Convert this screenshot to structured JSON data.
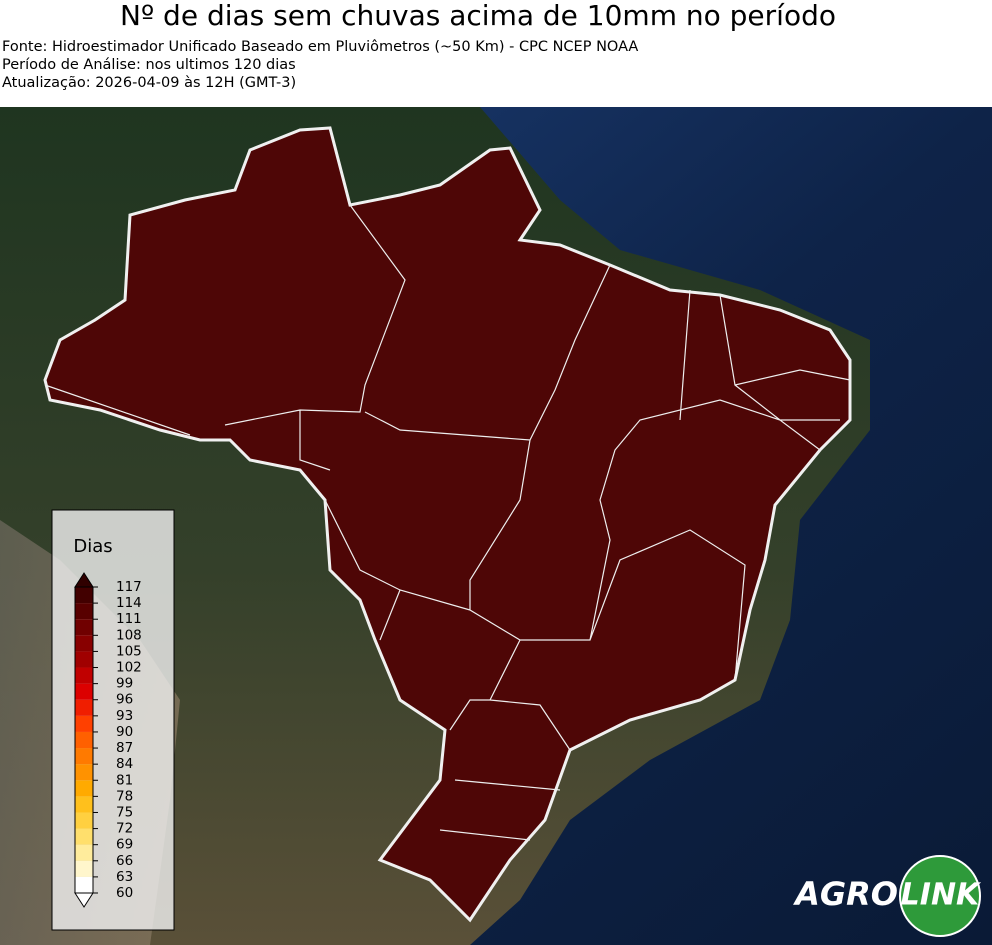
{
  "header": {
    "title": "Nº de dias sem chuvas acima de 10mm no período",
    "lines": [
      "Fonte: Hidroestimador Unificado Baseado em Pluviômetros (~50 Km) - CPC NCEP NOAA",
      "Período de Análise: nos ultimos 120 dias",
      "Atualização: 2026-04-09 às 12H (GMT-3)"
    ]
  },
  "colorbar": {
    "title": "Dias",
    "ticks": [
      60,
      63,
      66,
      69,
      72,
      75,
      78,
      81,
      84,
      87,
      90,
      93,
      96,
      99,
      102,
      105,
      108,
      111,
      114,
      117
    ],
    "colors": [
      "#ffffff",
      "#fff6cc",
      "#ffec9c",
      "#ffdf6c",
      "#ffd040",
      "#ffc01c",
      "#ffaa00",
      "#ff9200",
      "#ff7a00",
      "#ff6000",
      "#ff4000",
      "#f01e00",
      "#dc0000",
      "#c00000",
      "#a00000",
      "#880000",
      "#700000",
      "#580000",
      "#420000"
    ],
    "under": "#ffffff",
    "over": "#300000"
  },
  "map": {
    "fill": "#4e0606"
  },
  "logo": {
    "left": "AGRO",
    "right": "LINK"
  }
}
